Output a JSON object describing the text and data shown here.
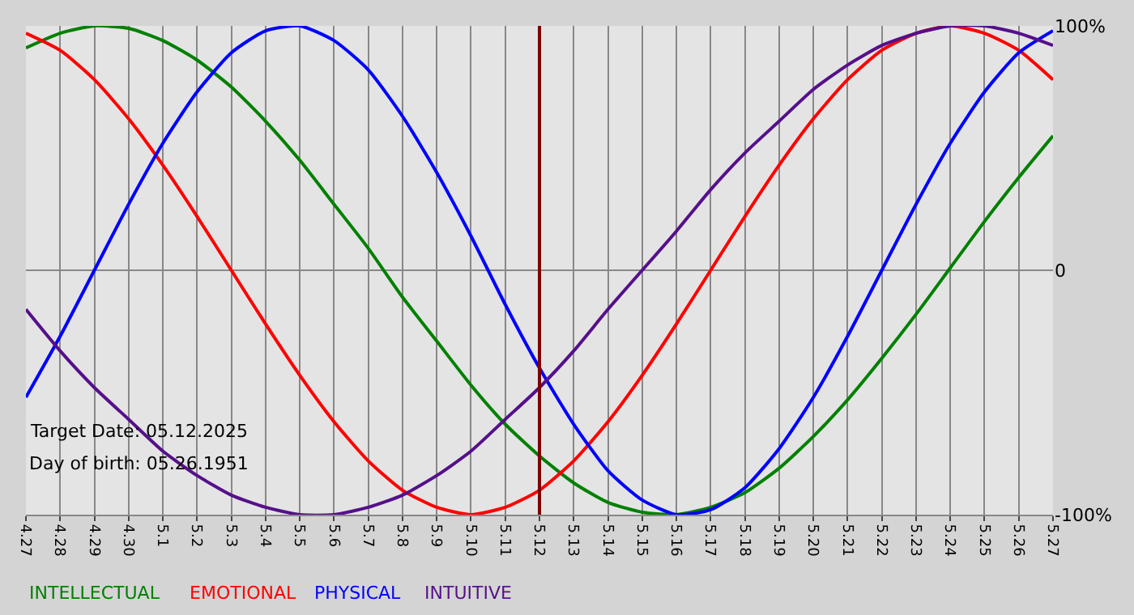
{
  "chart_data": {
    "type": "line",
    "categories": [
      "4.27",
      "4.28",
      "4.29",
      "4.30",
      "5.1",
      "5.2",
      "5.3",
      "5.4",
      "5.5",
      "5.6",
      "5.7",
      "5.8",
      "5.9",
      "5.10",
      "5.11",
      "5.12",
      "5.13",
      "5.14",
      "5.15",
      "5.16",
      "5.17",
      "5.18",
      "5.19",
      "5.20",
      "5.21",
      "5.22",
      "5.23",
      "5.24",
      "5.25",
      "5.26",
      "5.27"
    ],
    "series": [
      {
        "name": "INTELLECTUAL",
        "color": "#008000",
        "values": [
          91,
          97,
          100,
          99,
          94,
          86,
          75,
          61,
          45,
          27,
          9,
          -11,
          -29,
          -47,
          -63,
          -76,
          -87,
          -95,
          -99,
          -100,
          -97,
          -91,
          -81,
          -68,
          -53,
          -36,
          -18,
          1,
          20,
          38,
          55
        ]
      },
      {
        "name": "EMOTIONAL",
        "color": "#ff0000",
        "values": [
          97,
          90,
          78,
          62,
          43,
          22,
          0,
          -22,
          -43,
          -62,
          -78,
          -90,
          -97,
          -100,
          -97,
          -90,
          -78,
          -62,
          -43,
          -22,
          0,
          22,
          43,
          62,
          78,
          90,
          97,
          100,
          97,
          90,
          78
        ]
      },
      {
        "name": "PHYSICAL",
        "color": "#0000ff",
        "values": [
          -52,
          -27,
          0,
          27,
          52,
          73,
          89,
          98,
          100,
          94,
          82,
          63,
          40,
          14,
          -14,
          -40,
          -63,
          -82,
          -94,
          -100,
          -98,
          -89,
          -73,
          -52,
          -27,
          0,
          27,
          52,
          73,
          89,
          98
        ]
      },
      {
        "name": "INTUITIVE",
        "color": "#55108a",
        "values": [
          -16,
          -33,
          -48,
          -61,
          -74,
          -84,
          -92,
          -97,
          -100,
          -100,
          -97,
          -92,
          -84,
          -74,
          -61,
          -48,
          -33,
          -16,
          0,
          16,
          33,
          48,
          61,
          74,
          84,
          92,
          97,
          100,
          100,
          97,
          92
        ]
      }
    ],
    "ylim": [
      -100,
      100
    ],
    "yticks": [
      {
        "value": 100,
        "label": "100%"
      },
      0,
      {
        "value": -100,
        "label": "-100%"
      }
    ],
    "ref_lines": [
      {
        "axis": "x",
        "value": "5.12",
        "color": "#800000"
      }
    ],
    "annotations": [
      "Target Date: 05.12.2025",
      "Day of birth: 05.26.1951"
    ],
    "grid": true
  }
}
